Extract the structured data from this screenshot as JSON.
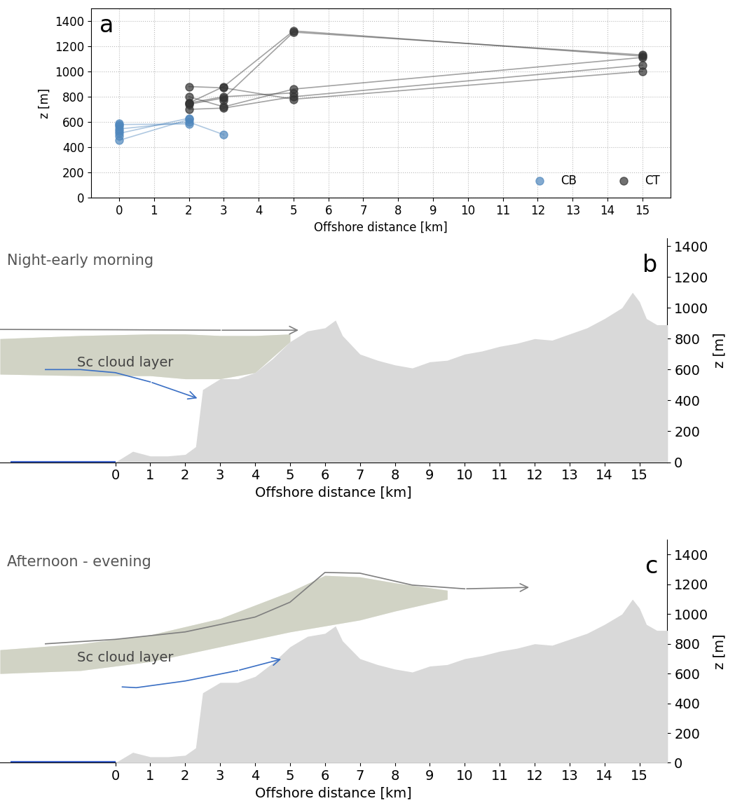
{
  "chart_data": [
    {
      "type": "line",
      "panel_label": "a",
      "x_label": "Offshore distance [km]",
      "y_label": "z [m]",
      "xlim": [
        -0.8,
        15.8
      ],
      "xticks": [
        0,
        1,
        2,
        3,
        4,
        5,
        6,
        7,
        8,
        9,
        10,
        11,
        12,
        13,
        14,
        15
      ],
      "ylim": [
        0,
        1500
      ],
      "yticks": [
        0,
        200,
        400,
        600,
        800,
        1000,
        1200,
        1400
      ],
      "grid": true,
      "legend": "lower right",
      "series": [
        {
          "name": "CB",
          "color": "#4f87bd",
          "marker": "o",
          "tracks": [
            {
              "x": [
                0,
                2
              ],
              "values": [
                455,
                620
              ]
            },
            {
              "x": [
                0,
                2
              ],
              "values": [
                510,
                630
              ]
            },
            {
              "x": [
                0,
                2,
                3
              ],
              "values": [
                545,
                600,
                500
              ]
            },
            {
              "x": [
                0,
                2
              ],
              "values": [
                580,
                585
              ]
            },
            {
              "x": [
                0
              ],
              "values": [
                490
              ]
            },
            {
              "x": [
                0
              ],
              "values": [
                530
              ]
            },
            {
              "x": [
                0
              ],
              "values": [
                570
              ]
            },
            {
              "x": [
                0
              ],
              "values": [
                590
              ]
            }
          ]
        },
        {
          "name": "CT",
          "color": "#333333",
          "marker": "o",
          "tracks": [
            {
              "x": [
                2,
                3,
                5,
                15
              ],
              "values": [
                880,
                870,
                780,
                1000
              ]
            },
            {
              "x": [
                2,
                3,
                5,
                15
              ],
              "values": [
                750,
                880,
                1320,
                1120
              ]
            },
            {
              "x": [
                2,
                3,
                5,
                15
              ],
              "values": [
                740,
                790,
                1310,
                1130
              ]
            },
            {
              "x": [
                2,
                3,
                5,
                15
              ],
              "values": [
                700,
                710,
                800,
                1050
              ]
            },
            {
              "x": [
                2,
                3,
                5,
                15
              ],
              "values": [
                800,
                720,
                860,
                1110
              ]
            },
            {
              "x": [
                2,
                3,
                5
              ],
              "values": [
                750,
                800,
                830
              ]
            },
            {
              "x": [
                3
              ],
              "values": [
                770
              ]
            }
          ]
        }
      ]
    },
    {
      "type": "area",
      "title": "Night-early morning",
      "panel_label": "b",
      "x_label": "Offshore distance [km]",
      "y_label": "z [m]",
      "xlim": [
        -3.3,
        15.8
      ],
      "xticks": [
        0,
        1,
        2,
        3,
        4,
        5,
        6,
        7,
        8,
        9,
        10,
        11,
        12,
        13,
        14,
        15
      ],
      "ylim": [
        0,
        1450
      ],
      "yticks": [
        0,
        200,
        400,
        600,
        800,
        1000,
        1200,
        1400
      ],
      "terrain": {
        "color": "#d9d9d9",
        "x": [
          0,
          0.5,
          1,
          1.5,
          2,
          2.3,
          2.5,
          3,
          3.5,
          4,
          4.5,
          5,
          5.5,
          6,
          6.3,
          6.5,
          7,
          7.5,
          8,
          8.5,
          9,
          9.5,
          10,
          10.5,
          11,
          11.5,
          12,
          12.5,
          13,
          13.5,
          14,
          14.5,
          14.8,
          15,
          15.2,
          15.5,
          15.8
        ],
        "values": [
          0,
          70,
          40,
          40,
          50,
          100,
          470,
          540,
          540,
          580,
          670,
          780,
          850,
          870,
          920,
          820,
          700,
          660,
          630,
          610,
          650,
          660,
          700,
          720,
          750,
          770,
          800,
          790,
          830,
          870,
          930,
          1000,
          1100,
          1040,
          930,
          890,
          890
        ]
      },
      "cloud": {
        "label": "Sc cloud layer",
        "color": "#c2c5b2",
        "x": [
          -3.3,
          -1,
          1,
          2,
          3,
          4,
          5
        ],
        "top": [
          800,
          820,
          830,
          830,
          820,
          820,
          830
        ],
        "base": [
          570,
          560,
          560,
          540,
          540,
          580,
          780
        ]
      },
      "flows": [
        {
          "color": "#7f7f7f",
          "x": [
            -3.3,
            0,
            3,
            5.3
          ],
          "values": [
            860,
            858,
            855,
            855
          ]
        },
        {
          "color": "#3a6fc4",
          "x": [
            -2,
            -1,
            0,
            1,
            2.4
          ],
          "values": [
            600,
            600,
            580,
            520,
            410
          ]
        }
      ]
    },
    {
      "type": "area",
      "title": "Afternoon - evening",
      "panel_label": "c",
      "x_label": "Offshore distance [km]",
      "y_label": "z [m]",
      "xlim": [
        -3.3,
        15.8
      ],
      "xticks": [
        0,
        1,
        2,
        3,
        4,
        5,
        6,
        7,
        8,
        9,
        10,
        11,
        12,
        13,
        14,
        15
      ],
      "ylim": [
        0,
        1500
      ],
      "yticks": [
        0,
        200,
        400,
        600,
        800,
        1000,
        1200,
        1400
      ],
      "terrain": {
        "color": "#d9d9d9",
        "x": [
          0,
          0.5,
          1,
          1.5,
          2,
          2.3,
          2.5,
          3,
          3.5,
          4,
          4.5,
          5,
          5.5,
          6,
          6.3,
          6.5,
          7,
          7.5,
          8,
          8.5,
          9,
          9.5,
          10,
          10.5,
          11,
          11.5,
          12,
          12.5,
          13,
          13.5,
          14,
          14.5,
          14.8,
          15,
          15.2,
          15.5,
          15.8
        ],
        "values": [
          0,
          70,
          40,
          40,
          50,
          100,
          470,
          540,
          540,
          580,
          670,
          780,
          850,
          870,
          920,
          820,
          700,
          660,
          630,
          610,
          650,
          660,
          700,
          720,
          750,
          770,
          800,
          790,
          830,
          870,
          930,
          1000,
          1100,
          1040,
          930,
          890,
          890
        ]
      },
      "cloud": {
        "label": "Sc cloud layer",
        "color": "#c2c5b2",
        "x": [
          -3.3,
          -1,
          1,
          3,
          5,
          6,
          7,
          8,
          9.5
        ],
        "top": [
          760,
          800,
          860,
          970,
          1150,
          1260,
          1250,
          1210,
          1160
        ],
        "base": [
          600,
          620,
          680,
          780,
          880,
          920,
          960,
          1020,
          1100
        ]
      },
      "flows": [
        {
          "color": "#7f7f7f",
          "x": [
            -2,
            0,
            2,
            4,
            5,
            6,
            7,
            8.5,
            10,
            11.9
          ],
          "values": [
            800,
            830,
            880,
            980,
            1080,
            1280,
            1275,
            1195,
            1170,
            1180
          ]
        },
        {
          "color": "#3a6fc4",
          "x": [
            0.2,
            0.6,
            2,
            3.5,
            4.8
          ],
          "values": [
            510,
            505,
            550,
            620,
            700
          ]
        }
      ]
    }
  ]
}
